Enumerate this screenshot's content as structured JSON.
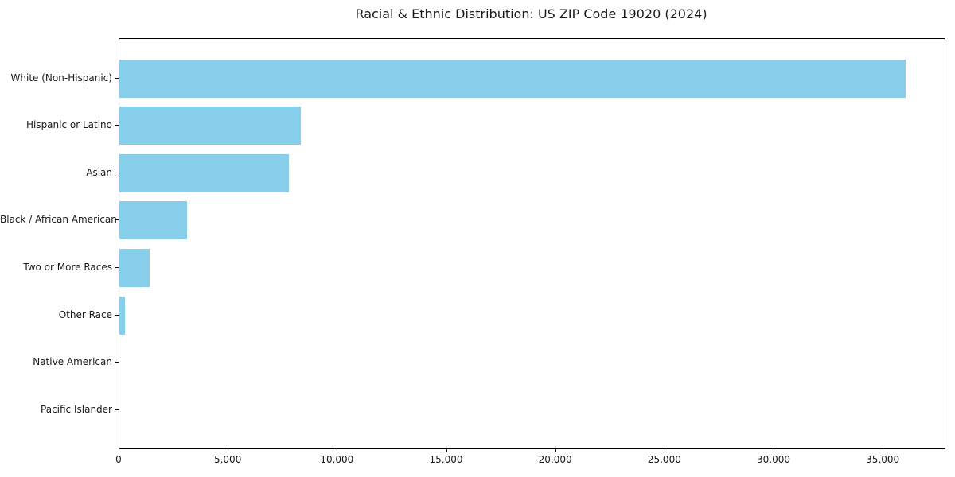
{
  "chart_data": {
    "type": "bar",
    "orientation": "horizontal",
    "title": "Racial & Ethnic Distribution: US ZIP Code 19020 (2024)",
    "categories": [
      "White (Non-Hispanic)",
      "Hispanic or Latino",
      "Asian",
      "Black / African American",
      "Two or More Races",
      "Other Race",
      "Native American",
      "Pacific Islander"
    ],
    "values": [
      36000,
      8300,
      7750,
      3100,
      1375,
      250,
      0,
      0
    ],
    "xlabel": "",
    "ylabel": "",
    "xlim": [
      0,
      37800
    ],
    "xticks": [
      0,
      5000,
      10000,
      15000,
      20000,
      25000,
      30000,
      35000
    ],
    "xtick_labels": [
      "0",
      "5,000",
      "10,000",
      "15,000",
      "20,000",
      "25,000",
      "30,000",
      "35,000"
    ],
    "bar_color": "#87CEEB",
    "axis_color": "#000000",
    "text_color": "#1a1a1a",
    "background_color": "#ffffff",
    "grid": false,
    "legend": "none"
  }
}
